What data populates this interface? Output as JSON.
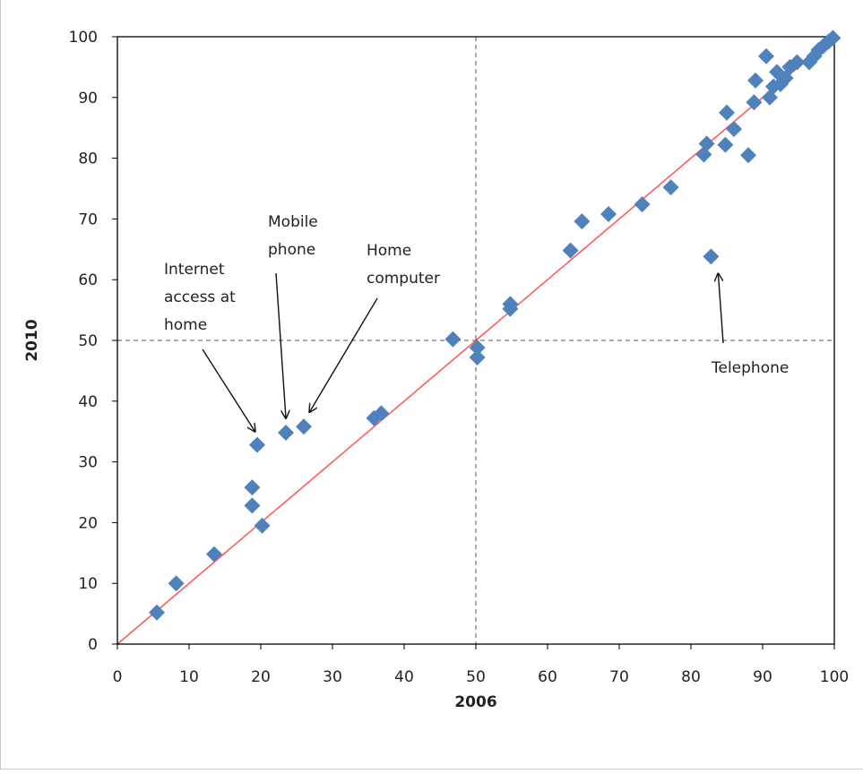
{
  "chart_data": {
    "type": "scatter",
    "title": "",
    "xlabel": "2006",
    "ylabel": "2010",
    "xlim": [
      0,
      100
    ],
    "ylim": [
      0,
      100
    ],
    "xticks": [
      0,
      10,
      20,
      30,
      40,
      50,
      60,
      70,
      80,
      90,
      100
    ],
    "yticks": [
      0,
      10,
      20,
      30,
      40,
      50,
      60,
      70,
      80,
      90,
      100
    ],
    "grid": false,
    "legend": "none",
    "reference_lines": [
      {
        "kind": "diagonal",
        "from": [
          0,
          0
        ],
        "to": [
          100,
          100
        ],
        "color": "#ff5a5a"
      },
      {
        "kind": "vertical",
        "x": 50,
        "style": "dashed"
      },
      {
        "kind": "horizontal",
        "y": 50,
        "style": "dashed"
      }
    ],
    "marker_color": "#4f81bd",
    "points": [
      {
        "x": 5.5,
        "y": 5.2
      },
      {
        "x": 8.2,
        "y": 10.0
      },
      {
        "x": 13.5,
        "y": 14.8
      },
      {
        "x": 18.8,
        "y": 25.8
      },
      {
        "x": 18.8,
        "y": 22.8
      },
      {
        "x": 19.5,
        "y": 32.8
      },
      {
        "x": 20.2,
        "y": 19.5
      },
      {
        "x": 23.5,
        "y": 34.8
      },
      {
        "x": 26.0,
        "y": 35.8
      },
      {
        "x": 35.8,
        "y": 37.2
      },
      {
        "x": 36.8,
        "y": 38.0
      },
      {
        "x": 46.8,
        "y": 50.2
      },
      {
        "x": 50.2,
        "y": 47.2
      },
      {
        "x": 50.2,
        "y": 48.8
      },
      {
        "x": 54.8,
        "y": 55.2
      },
      {
        "x": 54.8,
        "y": 56.0
      },
      {
        "x": 63.2,
        "y": 64.8
      },
      {
        "x": 64.8,
        "y": 69.6
      },
      {
        "x": 68.5,
        "y": 70.8
      },
      {
        "x": 73.2,
        "y": 72.4
      },
      {
        "x": 77.2,
        "y": 75.2
      },
      {
        "x": 81.8,
        "y": 80.6
      },
      {
        "x": 82.2,
        "y": 82.4
      },
      {
        "x": 82.8,
        "y": 63.8
      },
      {
        "x": 84.8,
        "y": 82.2
      },
      {
        "x": 85.0,
        "y": 87.5
      },
      {
        "x": 86.0,
        "y": 84.8
      },
      {
        "x": 88.0,
        "y": 80.5
      },
      {
        "x": 88.8,
        "y": 89.2
      },
      {
        "x": 89.0,
        "y": 92.8
      },
      {
        "x": 90.5,
        "y": 96.8
      },
      {
        "x": 91.0,
        "y": 90.0
      },
      {
        "x": 91.5,
        "y": 91.8
      },
      {
        "x": 92.0,
        "y": 94.2
      },
      {
        "x": 92.5,
        "y": 92.2
      },
      {
        "x": 93.2,
        "y": 93.2
      },
      {
        "x": 93.8,
        "y": 95.0
      },
      {
        "x": 94.8,
        "y": 95.8
      },
      {
        "x": 96.5,
        "y": 95.8
      },
      {
        "x": 97.2,
        "y": 96.8
      },
      {
        "x": 97.8,
        "y": 97.8
      },
      {
        "x": 98.5,
        "y": 98.5
      },
      {
        "x": 99.2,
        "y": 99.2
      },
      {
        "x": 99.8,
        "y": 99.8
      }
    ],
    "annotations": [
      {
        "text_lines": [
          "Internet",
          "access at",
          "home"
        ],
        "points_to": [
          19.2,
          35.0
        ]
      },
      {
        "text_lines": [
          "Mobile",
          "phone"
        ],
        "points_to": [
          23.5,
          37.2
        ]
      },
      {
        "text_lines": [
          "Home",
          "computer"
        ],
        "points_to": [
          26.8,
          38.2
        ]
      },
      {
        "text_lines": [
          "Telephone"
        ],
        "points_to": [
          83.8,
          61.0
        ]
      }
    ]
  }
}
